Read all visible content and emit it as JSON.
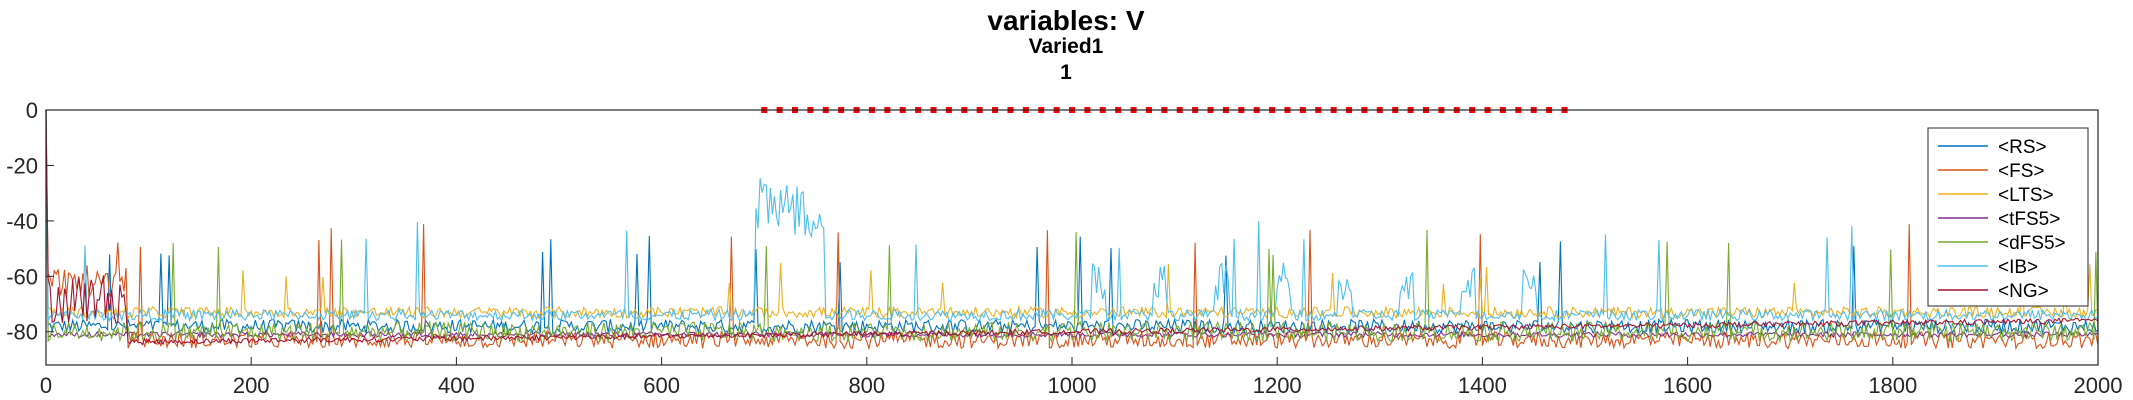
{
  "chart_data": {
    "type": "line",
    "title": "variables: V",
    "subtitle_lines": [
      "Varied1",
      "1"
    ],
    "xlabel": "",
    "ylabel": "",
    "xlim": [
      0,
      2000
    ],
    "ylim": [
      -92,
      0
    ],
    "x_ticks": [
      0,
      200,
      400,
      600,
      800,
      1000,
      1200,
      1400,
      1600,
      1800,
      2000
    ],
    "y_ticks": [
      0,
      -20,
      -40,
      -60,
      -80
    ],
    "grid": false,
    "legend_position": "top-right",
    "series": [
      {
        "name": "<RS>",
        "color": "#0072BD",
        "baseline": -78,
        "noise": 2.5,
        "spike_rate": 0.012,
        "spike_to": -50
      },
      {
        "name": "<FS>",
        "color": "#D95319",
        "baseline": -83,
        "noise": 3.0,
        "spike_rate": 0.01,
        "spike_to": -45
      },
      {
        "name": "<LTS>",
        "color": "#EDB120",
        "baseline": -73,
        "noise": 2.0,
        "spike_rate": 0.01,
        "spike_to": -60
      },
      {
        "name": "<tFS5>",
        "color": "#7E2F8E",
        "baseline": -81,
        "noise": 1.0,
        "spike_rate": 0.0,
        "spike_to": -80
      },
      {
        "name": "<dFS5>",
        "color": "#77AC30",
        "baseline": -80,
        "noise": 3.5,
        "spike_rate": 0.014,
        "spike_to": -48
      },
      {
        "name": "<IB>",
        "color": "#4DBEEE",
        "baseline": -74,
        "noise": 2.0,
        "spike_rate": 0.008,
        "spike_to": -45
      },
      {
        "name": "<NG>",
        "color": "#A2142F",
        "baseline": -78,
        "noise": 1.5,
        "spike_rate": 0.0,
        "spike_to": -78
      }
    ],
    "stimulus_markers": {
      "color": "#FF0000",
      "y": 0,
      "x_start": 700,
      "x_end": 1480,
      "spacing": 15
    }
  }
}
